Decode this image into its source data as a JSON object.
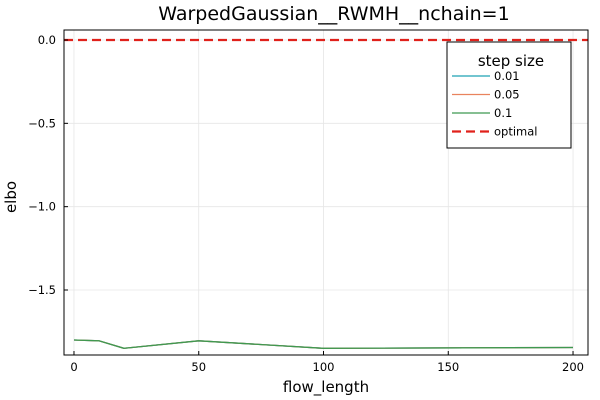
{
  "chart_data": {
    "type": "line",
    "title": "WarpedGaussian__RWMH__nchain=1",
    "xlabel": "flow_length",
    "ylabel": "elbo",
    "xlim": [
      -4,
      206
    ],
    "ylim": [
      -1.89,
      0.06
    ],
    "x_ticks": [
      0,
      50,
      100,
      150,
      200
    ],
    "x_tick_labels": [
      "0",
      "50",
      "100",
      "150",
      "200"
    ],
    "y_ticks": [
      0.0,
      -0.5,
      -1.0,
      -1.5
    ],
    "y_tick_labels": [
      "0.0",
      "−0.5",
      "−1.0",
      "−1.5"
    ],
    "grid": true,
    "legend": {
      "title": "step size",
      "position": "top-right"
    },
    "x": [
      0,
      10,
      20,
      50,
      100,
      200
    ],
    "series": [
      {
        "name": "0.01",
        "color": "#1fa2b4",
        "values": [
          -1.8,
          -1.805,
          -1.85,
          -1.805,
          -1.85,
          -1.845
        ]
      },
      {
        "name": "0.05",
        "color": "#e9835e",
        "values": [
          -1.8,
          -1.805,
          -1.85,
          -1.805,
          -1.85,
          -1.845
        ]
      },
      {
        "name": "0.1",
        "color": "#3f9950",
        "values": [
          -1.8,
          -1.805,
          -1.85,
          -1.805,
          -1.85,
          -1.845
        ]
      }
    ],
    "hline": {
      "name": "optimal",
      "value": 0.0,
      "color": "#e0211b",
      "style": "dashed"
    }
  }
}
